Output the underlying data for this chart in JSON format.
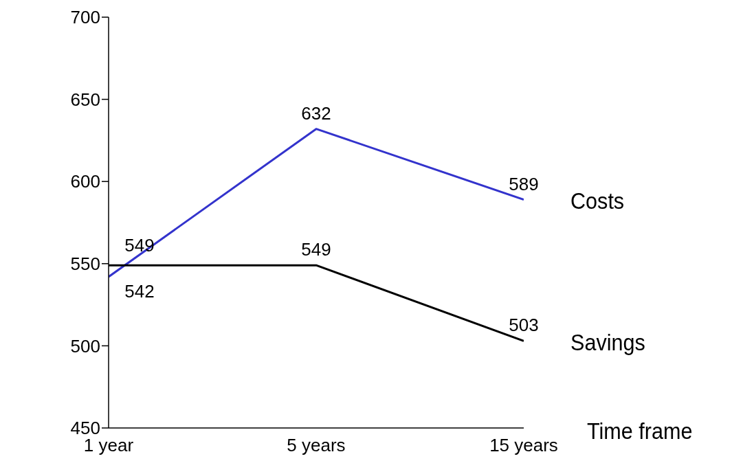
{
  "chart_data": {
    "type": "line",
    "xlabel": "Time frame",
    "categories": [
      "1 year",
      "5 years",
      "15 years"
    ],
    "series": [
      {
        "name": "Costs",
        "color": "#3333cc",
        "values": [
          542,
          632,
          589
        ]
      },
      {
        "name": "Savings",
        "color": "#000000",
        "values": [
          549,
          549,
          503
        ]
      }
    ],
    "ylim": [
      450,
      700
    ],
    "yticks": [
      450,
      500,
      550,
      600,
      650,
      700
    ],
    "data_labels": true,
    "grid": false,
    "marker": "none",
    "line_style": "solid"
  }
}
